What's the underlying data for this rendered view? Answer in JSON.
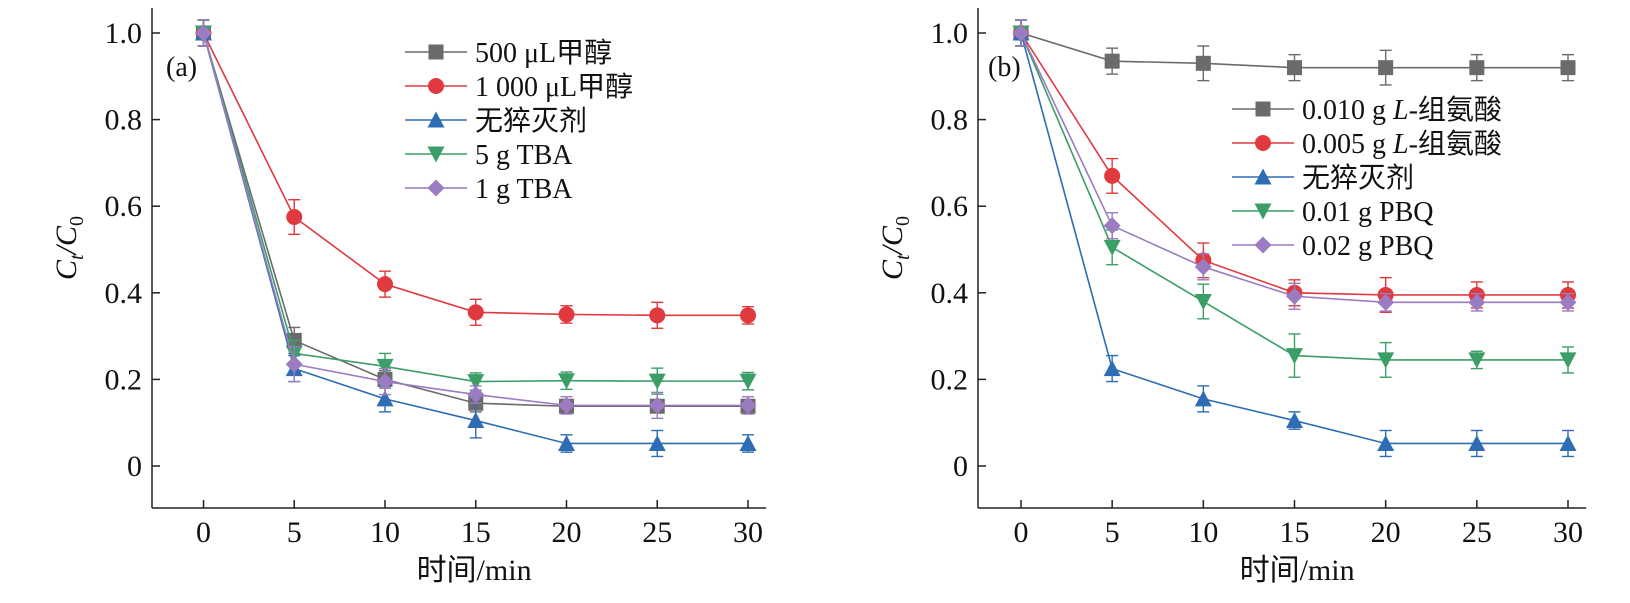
{
  "chart_data": [
    {
      "type": "line",
      "panel_label": "(a)",
      "x": [
        0,
        5,
        10,
        15,
        20,
        25,
        30
      ],
      "xlim": [
        -2.5,
        31
      ],
      "ylim": [
        -0.1,
        1.03
      ],
      "xticks": [
        "0",
        "5",
        "10",
        "15",
        "20",
        "25",
        "30"
      ],
      "yticks": [
        "0",
        "0.2",
        "0.4",
        "0.6",
        "0.8",
        "1.0"
      ],
      "xlabel": "时间/min",
      "ylabel": "Ct/C0",
      "grid": false,
      "legend_position": "top-right",
      "series": [
        {
          "name": "500 μL甲醇",
          "color": "#6b6b6b",
          "marker": "square",
          "values": [
            1.0,
            0.29,
            0.2,
            0.145,
            0.138,
            0.138,
            0.138
          ],
          "errors": [
            0.03,
            0.03,
            0.02,
            0.02,
            0.015,
            0.015,
            0.015
          ]
        },
        {
          "name": "1 000 μL甲醇",
          "color": "#e0393e",
          "marker": "circle",
          "values": [
            1.0,
            0.575,
            0.42,
            0.355,
            0.35,
            0.348,
            0.348
          ],
          "errors": [
            0.03,
            0.04,
            0.03,
            0.03,
            0.02,
            0.03,
            0.02
          ]
        },
        {
          "name": "无猝灭剂",
          "color": "#2e6db4",
          "marker": "triangle-up",
          "values": [
            1.0,
            0.225,
            0.155,
            0.105,
            0.052,
            0.052,
            0.052
          ],
          "errors": [
            0.03,
            0.03,
            0.03,
            0.04,
            0.02,
            0.03,
            0.02
          ]
        },
        {
          "name": "5 g TBA",
          "color": "#3a9e66",
          "marker": "triangle-down",
          "values": [
            1.0,
            0.26,
            0.23,
            0.195,
            0.197,
            0.196,
            0.196
          ],
          "errors": [
            0.03,
            0.03,
            0.03,
            0.02,
            0.02,
            0.03,
            0.02
          ]
        },
        {
          "name": "1 g TBA",
          "color": "#9b7bc1",
          "marker": "diamond",
          "values": [
            1.0,
            0.235,
            0.195,
            0.165,
            0.14,
            0.14,
            0.14
          ],
          "errors": [
            0.03,
            0.04,
            0.03,
            0.02,
            0.02,
            0.03,
            0.02
          ]
        }
      ]
    },
    {
      "type": "line",
      "panel_label": "(b)",
      "x": [
        0,
        5,
        10,
        15,
        20,
        25,
        30
      ],
      "xlim": [
        -2.5,
        31
      ],
      "ylim": [
        -0.1,
        1.03
      ],
      "xticks": [
        "0",
        "5",
        "10",
        "15",
        "20",
        "25",
        "30"
      ],
      "yticks": [
        "0",
        "0.2",
        "0.4",
        "0.6",
        "0.8",
        "1.0"
      ],
      "xlabel": "时间/min",
      "ylabel": "Ct/C0",
      "grid": false,
      "legend_position": "top-right",
      "series": [
        {
          "name": "0.010 g L-组氨酸",
          "color": "#6b6b6b",
          "marker": "square",
          "values": [
            1.0,
            0.935,
            0.93,
            0.92,
            0.92,
            0.92,
            0.92
          ],
          "errors": [
            0.03,
            0.03,
            0.04,
            0.03,
            0.04,
            0.03,
            0.03
          ]
        },
        {
          "name": "0.005 g L-组氨酸",
          "color": "#e0393e",
          "marker": "circle",
          "values": [
            1.0,
            0.67,
            0.475,
            0.4,
            0.395,
            0.395,
            0.395
          ],
          "errors": [
            0.03,
            0.04,
            0.04,
            0.03,
            0.04,
            0.03,
            0.03
          ]
        },
        {
          "name": "无猝灭剂",
          "color": "#2e6db4",
          "marker": "triangle-up",
          "values": [
            1.0,
            0.225,
            0.155,
            0.105,
            0.052,
            0.052,
            0.052
          ],
          "errors": [
            0.03,
            0.03,
            0.03,
            0.02,
            0.03,
            0.03,
            0.03
          ]
        },
        {
          "name": "0.01 g PBQ",
          "color": "#3a9e66",
          "marker": "triangle-down",
          "values": [
            1.0,
            0.505,
            0.38,
            0.255,
            0.245,
            0.245,
            0.245
          ],
          "errors": [
            0.03,
            0.04,
            0.04,
            0.05,
            0.04,
            0.02,
            0.03
          ]
        },
        {
          "name": "0.02 g PBQ",
          "color": "#9b7bc1",
          "marker": "diamond",
          "values": [
            1.0,
            0.555,
            0.46,
            0.392,
            0.378,
            0.378,
            0.378
          ],
          "errors": [
            0.03,
            0.03,
            0.03,
            0.03,
            0.02,
            0.02,
            0.02
          ]
        }
      ]
    }
  ]
}
